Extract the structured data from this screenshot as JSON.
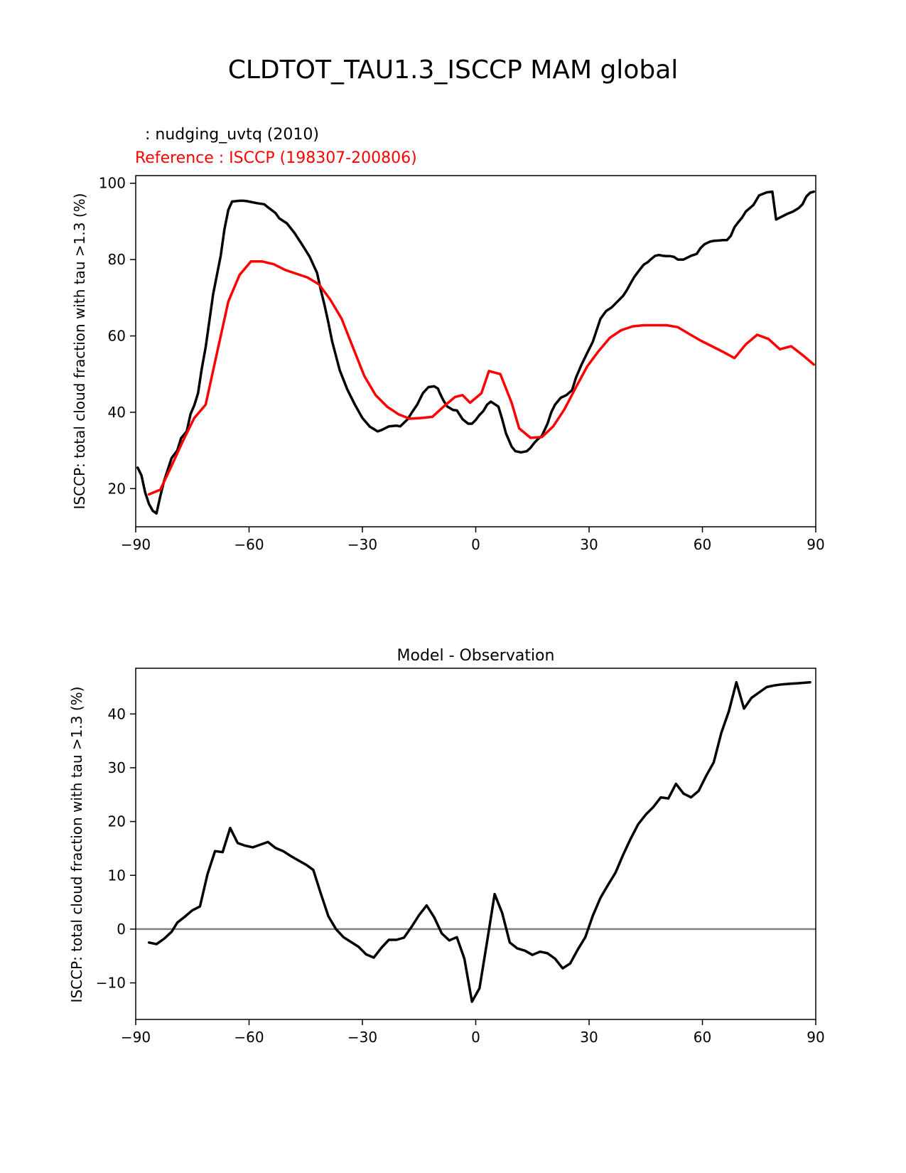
{
  "figure": {
    "title": "CLDTOT_TAU1.3_ISCCP MAM global"
  },
  "chart_data": [
    {
      "type": "line",
      "panel": "top",
      "title": "",
      "model_label": "  : nudging_uvtq (2010)",
      "reference_label": "Reference : ISCCP (198307-200806)",
      "xlabel": "",
      "ylabel": "ISCCP: total cloud fraction with tau >1.3 (%)",
      "xlim": [
        -90,
        90
      ],
      "ylim": [
        10,
        102
      ],
      "xticks": [
        -90,
        -60,
        -30,
        0,
        30,
        60,
        90
      ],
      "xtick_labels": [
        "−90",
        "−60",
        "−30",
        "0",
        "30",
        "60",
        "90"
      ],
      "yticks": [
        20,
        40,
        60,
        80,
        100
      ],
      "ytick_labels": [
        "20",
        "40",
        "60",
        "80",
        "100"
      ],
      "series": [
        {
          "name": "nudging_uvtq (2010)",
          "color": "#000000",
          "x": [
            -89.5,
            -88.5,
            -87.5,
            -86.5,
            -85.5,
            -84.5,
            -83.5,
            -82.5,
            -80.5,
            -79,
            -78,
            -76.5,
            -75.5,
            -74.5,
            -73.5,
            -72.5,
            -71.5,
            -69.5,
            -67.5,
            -66.5,
            -65.5,
            -64.5,
            -62.5,
            -61.5,
            -60.5,
            -59,
            -58,
            -56,
            -55,
            -53,
            -52,
            -50,
            -48,
            -46,
            -44,
            -42,
            -41,
            -40,
            -39,
            -38,
            -36,
            -34,
            -32,
            -30,
            -28,
            -26,
            -25,
            -23,
            -22,
            -21,
            -20,
            -18,
            -17,
            -15.5,
            -14,
            -12.5,
            -11,
            -10,
            -9.5,
            -8.5,
            -7.5,
            -6,
            -5,
            -3.5,
            -2,
            -1,
            0,
            1,
            2,
            3,
            4,
            6,
            7,
            8,
            9.5,
            10.5,
            12,
            13.5,
            14.5,
            15.5,
            16.5,
            17.5,
            19,
            20,
            21,
            22.5,
            24,
            25.5,
            26.5,
            28,
            29.5,
            31,
            32,
            33,
            34.5,
            36,
            37.5,
            39,
            40,
            41,
            42,
            43.5,
            44.5,
            45.5,
            46.5,
            47.5,
            48.5,
            49.5,
            50.5,
            51.5,
            52.5,
            53.5,
            55,
            57,
            58.5,
            59.5,
            60.5,
            62,
            63,
            64.5,
            65.5,
            66.5,
            67.5,
            68.5,
            69.5,
            70.5,
            71.5,
            73.5,
            75,
            77,
            78.5,
            79.5,
            80.5,
            81.5,
            82.5,
            84,
            85.5,
            86.5,
            87.5,
            88.5,
            89.5
          ],
          "y": [
            25.5,
            23.5,
            19,
            16,
            14.2,
            13.5,
            18,
            22,
            28,
            30,
            33.2,
            35,
            39.5,
            41.8,
            45,
            51.5,
            57,
            71,
            81,
            88,
            93,
            95.2,
            95.4,
            95.4,
            95.3,
            95,
            94.8,
            94.5,
            93.7,
            92.2,
            90.8,
            89.5,
            87,
            84,
            80.8,
            76.5,
            72,
            68,
            63.5,
            58.5,
            51,
            46,
            42,
            38.5,
            36.2,
            35,
            35.3,
            36.3,
            36.4,
            36.5,
            36.3,
            38.2,
            39.8,
            42,
            45,
            46.6,
            46.8,
            46.2,
            45,
            43,
            41.5,
            40.6,
            40.5,
            38.2,
            37,
            37,
            38,
            39.3,
            40.3,
            42,
            42.8,
            41.5,
            38.2,
            34.5,
            31,
            29.8,
            29.5,
            29.8,
            30.7,
            32,
            33,
            33.8,
            37,
            40,
            42,
            43.8,
            44.5,
            45.8,
            49,
            52.5,
            55.5,
            58.5,
            61.5,
            64.5,
            66.5,
            67.5,
            69,
            70.5,
            72,
            73.8,
            75.5,
            77.5,
            78.7,
            79.3,
            80.2,
            81,
            81.2,
            81,
            80.9,
            80.9,
            80.7,
            80,
            80,
            81,
            81.5,
            83,
            84,
            84.7,
            84.9,
            85,
            85.1,
            85.1,
            86.2,
            88.5,
            89.8,
            91,
            92.6,
            94.3,
            96.8,
            97.6,
            97.8,
            90.5,
            91,
            91.5,
            92,
            92.6,
            93.5,
            94.5,
            96.5,
            97.5,
            97.8
          ]
        },
        {
          "name": "Reference : ISCCP (198307-200806)",
          "color": "#ff0000",
          "x": [
            -86.5,
            -83.5,
            -80.5,
            -77.5,
            -74.5,
            -71.5,
            -68.5,
            -65.5,
            -62.5,
            -59.5,
            -56.5,
            -53.5,
            -50.5,
            -47.5,
            -44.5,
            -41.5,
            -38.5,
            -35.5,
            -32.5,
            -29.5,
            -26.5,
            -23.5,
            -20.5,
            -17.5,
            -14.5,
            -11.5,
            -8.5,
            -5.5,
            -3.5,
            -1.5,
            1.5,
            3.5,
            6.5,
            9.5,
            11.5,
            14.5,
            17.5,
            20.5,
            23.5,
            26.5,
            29.5,
            32.5,
            35.5,
            38.5,
            41.5,
            44.5,
            47.5,
            50.5,
            53.5,
            56.5,
            59.5,
            62.5,
            65.5,
            68.5,
            71.5,
            74.5,
            77.5,
            80.5,
            83.5,
            86.5,
            89.5
          ],
          "y": [
            18.5,
            19.7,
            26,
            32.5,
            38.5,
            42,
            55.5,
            69,
            76,
            79.5,
            79.5,
            78.8,
            77.3,
            76.3,
            75.3,
            73.5,
            69.5,
            64.5,
            57,
            49.5,
            44.5,
            41.5,
            39.5,
            38.3,
            38.5,
            38.8,
            41.5,
            44,
            44.5,
            42.5,
            45,
            50.8,
            50,
            42.5,
            35.8,
            33.3,
            33.5,
            36.3,
            40.8,
            46.5,
            52,
            56,
            59.5,
            61.5,
            62.5,
            62.8,
            62.8,
            62.8,
            62.3,
            60.5,
            58.8,
            57.3,
            55.8,
            54.2,
            57.8,
            60.3,
            59.2,
            56.5,
            57.3,
            55,
            52.5
          ]
        }
      ]
    },
    {
      "type": "line",
      "panel": "bottom",
      "title": "Model - Observation",
      "xlabel": "",
      "ylabel": "ISCCP: total cloud fraction with tau >1.3 (%)",
      "xlim": [
        -90,
        90
      ],
      "ylim": [
        -16.8,
        48.5
      ],
      "xticks": [
        -90,
        -60,
        -30,
        0,
        30,
        60,
        90
      ],
      "xtick_labels": [
        "−90",
        "−60",
        "−30",
        "0",
        "30",
        "60",
        "90"
      ],
      "yticks": [
        -10,
        0,
        10,
        20,
        30,
        40
      ],
      "ytick_labels": [
        "−10",
        "0",
        "10",
        "20",
        "30",
        "40"
      ],
      "reference_line": 0,
      "series": [
        {
          "name": "Model - Observation",
          "color": "#000000",
          "x": [
            -86.5,
            -84.5,
            -82.5,
            -80.5,
            -79,
            -77,
            -75,
            -73,
            -71,
            -69,
            -67,
            -65,
            -63,
            -61,
            -59,
            -57,
            -55,
            -53,
            -51,
            -49,
            -47,
            -45,
            -43,
            -41,
            -39,
            -37,
            -35,
            -33,
            -31,
            -29,
            -27,
            -25,
            -23,
            -21,
            -19,
            -17,
            -15,
            -13,
            -11,
            -9,
            -7,
            -5,
            -3,
            -1,
            1,
            3,
            5,
            7,
            9,
            11,
            13,
            15,
            17,
            19,
            21,
            23,
            25,
            27,
            29,
            31,
            33,
            35,
            37,
            39,
            41,
            43,
            45,
            47,
            49,
            51,
            53,
            55,
            57,
            59,
            61,
            63,
            65,
            67,
            69,
            71,
            73,
            75,
            77,
            79,
            81,
            83,
            85,
            87,
            88.5
          ],
          "y": [
            -2.5,
            -2.8,
            -1.8,
            -0.5,
            1.2,
            2.3,
            3.5,
            4.2,
            10.2,
            14.5,
            14.3,
            18.8,
            16,
            15.5,
            15.2,
            15.7,
            16.2,
            15.1,
            14.5,
            13.6,
            12.8,
            12,
            11,
            6.6,
            2.4,
            0,
            -1.5,
            -2.4,
            -3.3,
            -4.7,
            -5.3,
            -3.5,
            -2,
            -2,
            -1.6,
            0.4,
            2.6,
            4.4,
            2.2,
            -0.8,
            -2.1,
            -1.5,
            -5.5,
            -13.5,
            -11,
            -2.3,
            6.5,
            3,
            -2.5,
            -3.6,
            -4,
            -4.8,
            -4.2,
            -4.5,
            -5.5,
            -7.3,
            -6.4,
            -3.8,
            -1.5,
            2.5,
            5.8,
            8.2,
            10.5,
            13.8,
            16.8,
            19.5,
            21.3,
            22.7,
            24.5,
            24.3,
            27,
            25.2,
            24.5,
            25.7,
            28.5,
            31,
            36.5,
            40.5,
            45.9,
            41,
            43,
            44,
            45,
            45.3,
            45.5,
            45.6,
            45.7,
            45.8,
            45.9
          ]
        }
      ]
    }
  ]
}
